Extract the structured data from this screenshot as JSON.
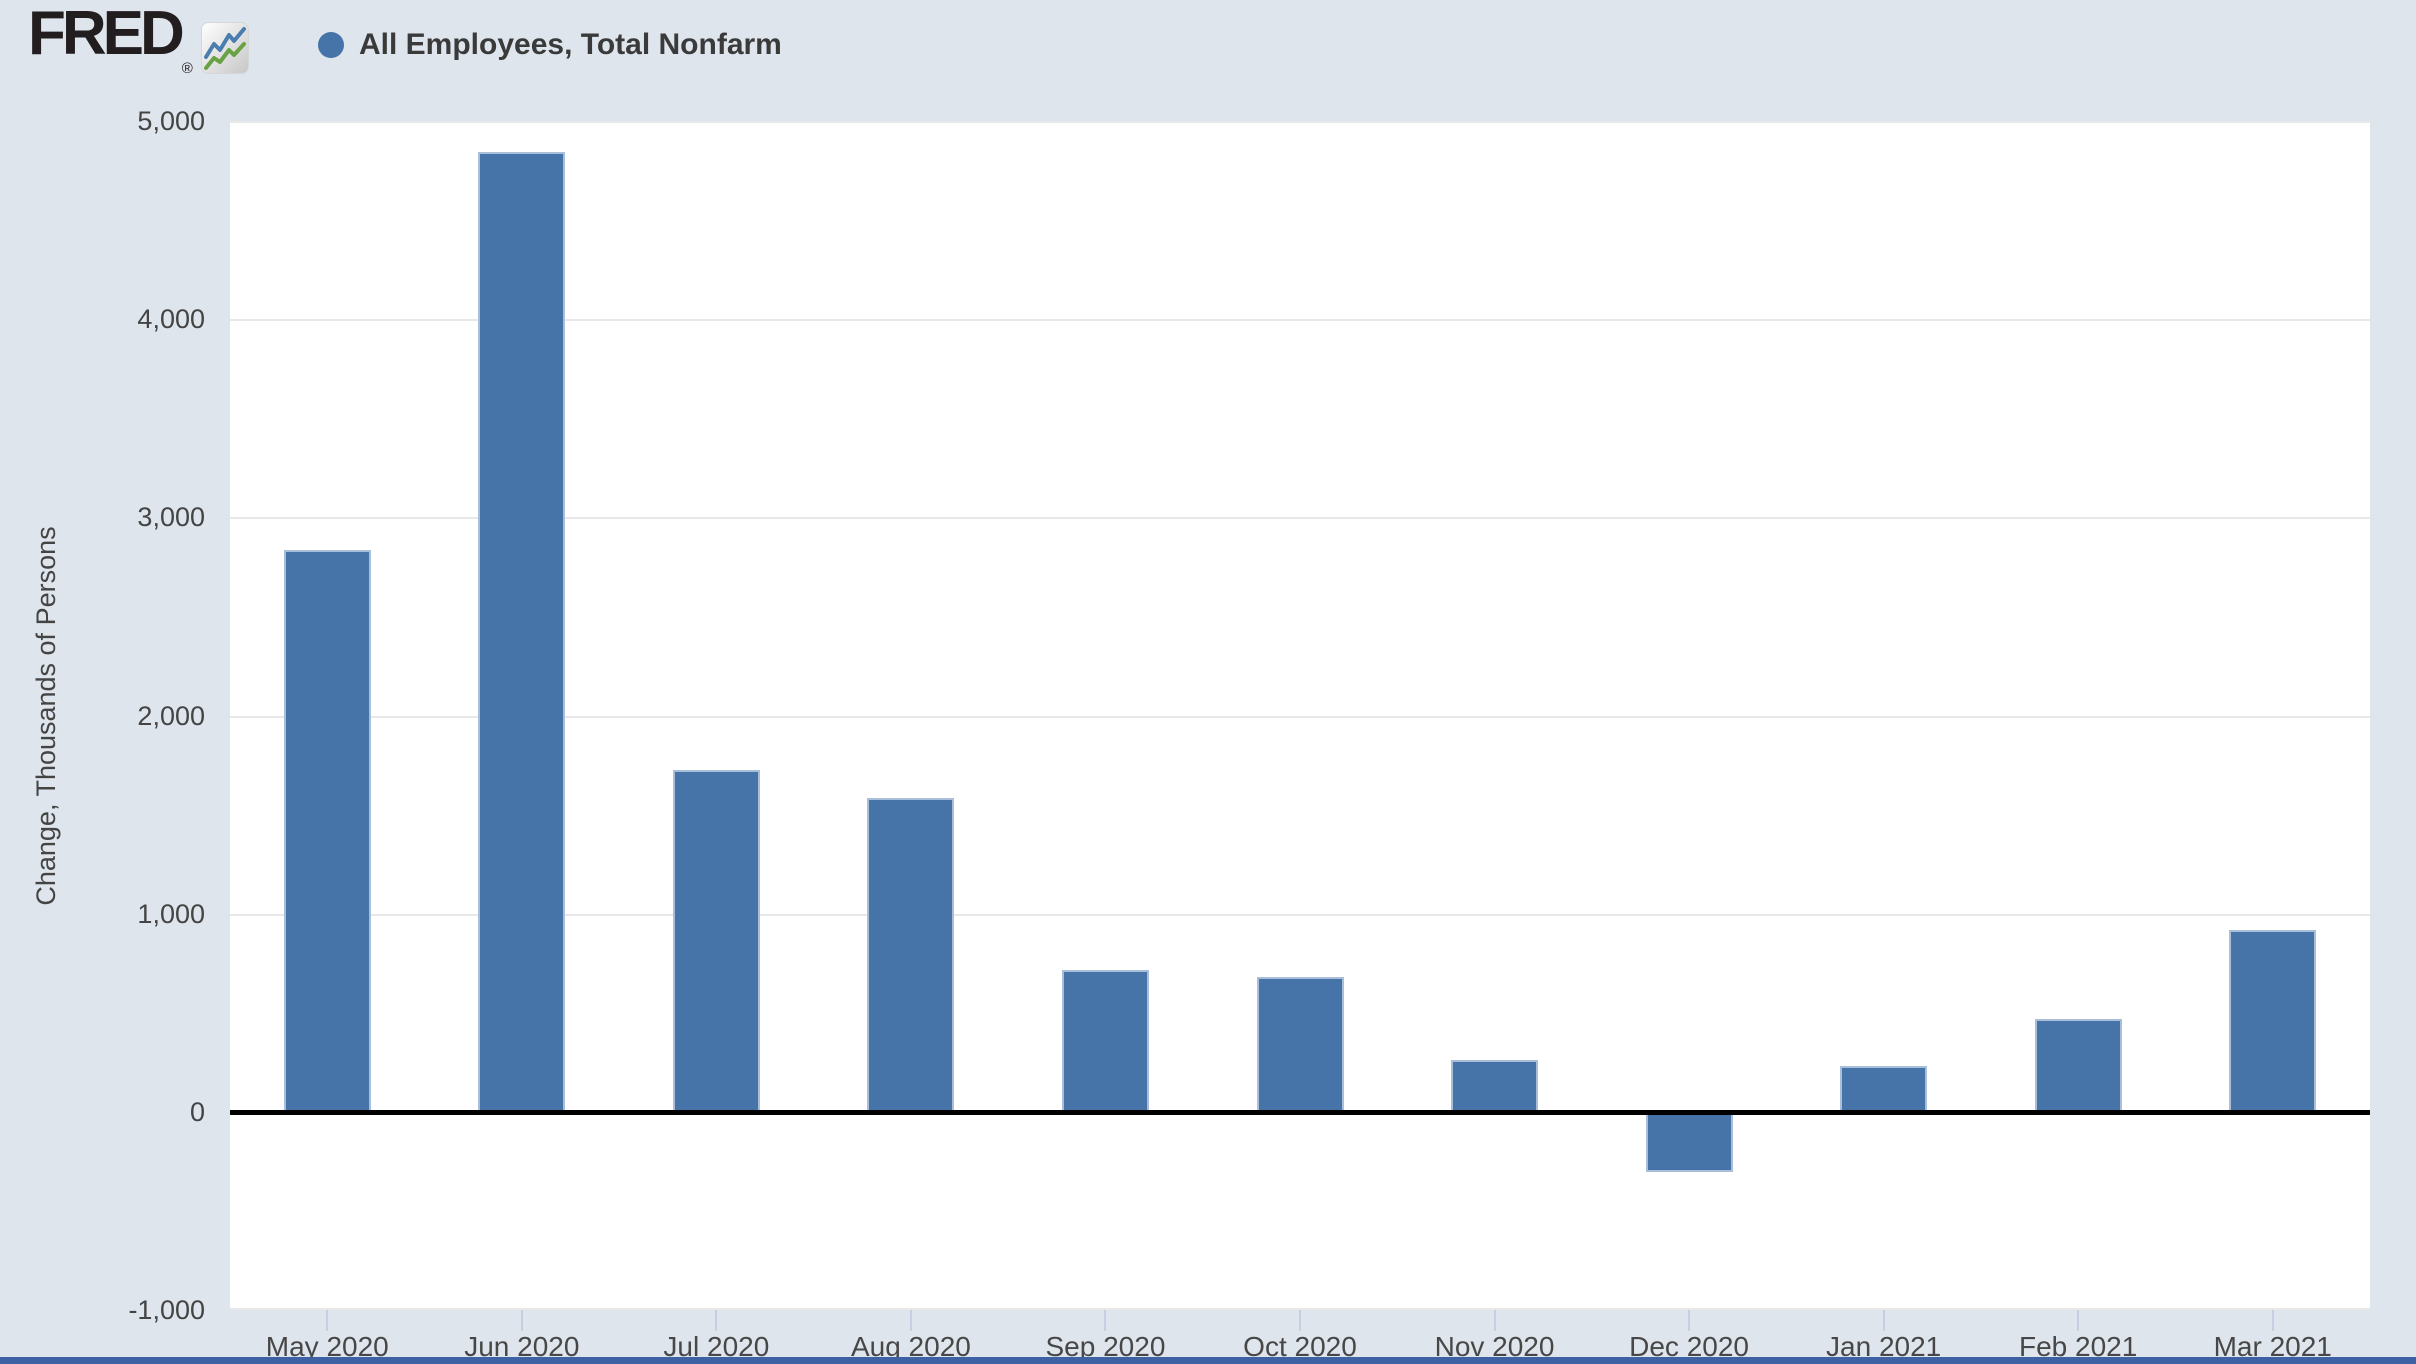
{
  "header": {
    "logo_text": "FRED",
    "registered_mark": "®",
    "legend": {
      "series_label": "All Employees, Total Nonfarm",
      "marker_color": "#4673a8"
    }
  },
  "colors": {
    "background": "#dee5ed",
    "plot_background": "#ffffff",
    "bar_fill": "#4673a8",
    "bar_edge": "#a9bfd9",
    "gridline": "#e8e8e8",
    "zero_line": "#000000",
    "axis_text": "#444444",
    "bottom_strip": "#3e61a3"
  },
  "chart_data": {
    "type": "bar",
    "title": "",
    "series_name": "All Employees, Total Nonfarm",
    "categories": [
      "May 2020",
      "Jun 2020",
      "Jul 2020",
      "Aug 2020",
      "Sep 2020",
      "Oct 2020",
      "Nov 2020",
      "Dec 2020",
      "Jan 2021",
      "Feb 2021",
      "Mar 2021"
    ],
    "values": [
      2833,
      4846,
      1726,
      1583,
      716,
      680,
      264,
      -306,
      233,
      468,
      916
    ],
    "xlabel": "",
    "ylabel": "Change, Thousands of Persons",
    "ylim": [
      -1000,
      5000
    ],
    "yticks": [
      5000,
      4000,
      3000,
      2000,
      1000,
      0,
      -1000
    ],
    "grid": "horizontal",
    "legend_position": "top-left",
    "bar_color": "#4673a8",
    "zero_line": true
  }
}
